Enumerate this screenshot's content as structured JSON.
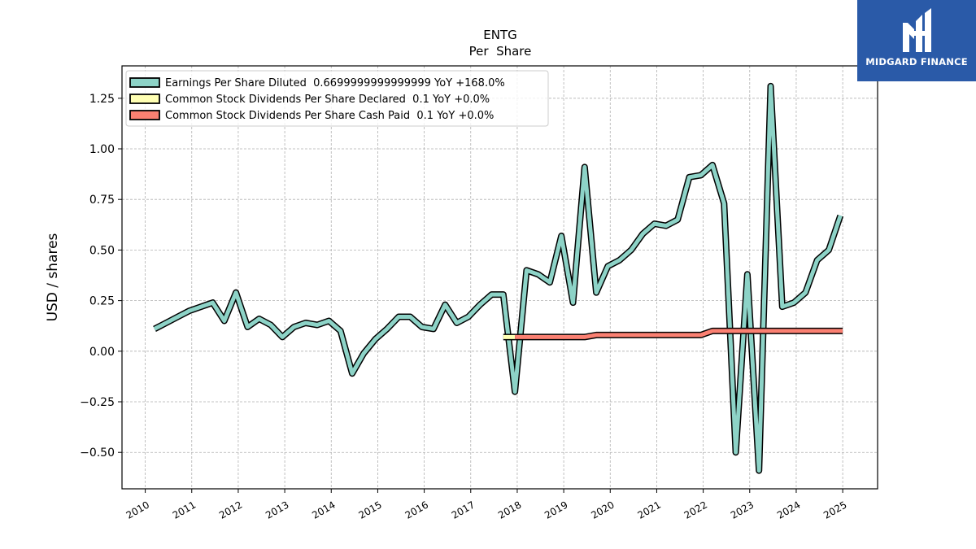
{
  "brand": {
    "name": "MIDGARD FINANCE",
    "colors": {
      "background": "#2a5aa8",
      "text": "#ffffff"
    }
  },
  "chart_data": {
    "type": "line",
    "title": "ENTG",
    "subtitle": "Per  Share",
    "ylabel": "USD / shares",
    "xlabel": "",
    "ylim": [
      -0.68,
      1.41
    ],
    "xlim": [
      2009.5,
      2025.75
    ],
    "yticks": [
      -0.5,
      -0.25,
      0.0,
      0.25,
      0.5,
      0.75,
      1.0,
      1.25
    ],
    "ytick_labels": [
      "−0.50",
      "−0.25",
      "0.00",
      "0.25",
      "0.50",
      "0.75",
      "1.00",
      "1.25"
    ],
    "xticks": [
      2010,
      2011,
      2012,
      2013,
      2014,
      2015,
      2016,
      2017,
      2018,
      2019,
      2020,
      2021,
      2022,
      2023,
      2024,
      2025
    ],
    "xtick_labels": [
      "2010",
      "2011",
      "2012",
      "2013",
      "2014",
      "2015",
      "2016",
      "2017",
      "2018",
      "2019",
      "2020",
      "2021",
      "2022",
      "2023",
      "2024",
      "2025"
    ],
    "grid": true,
    "legend_position": "top-left",
    "series": [
      {
        "name": "Earnings Per Share Diluted  0.6699999999999999 YoY +168.0%",
        "color": "#8dd3c7",
        "x": [
          2010.2,
          2010.45,
          2010.7,
          2010.95,
          2011.2,
          2011.45,
          2011.7,
          2011.95,
          2012.2,
          2012.45,
          2012.7,
          2012.95,
          2013.2,
          2013.45,
          2013.7,
          2013.95,
          2014.2,
          2014.45,
          2014.7,
          2014.95,
          2015.2,
          2015.45,
          2015.7,
          2015.95,
          2016.2,
          2016.45,
          2016.7,
          2016.95,
          2017.2,
          2017.45,
          2017.7,
          2017.95,
          2018.2,
          2018.45,
          2018.7,
          2018.95,
          2019.2,
          2019.45,
          2019.7,
          2019.95,
          2020.2,
          2020.45,
          2020.7,
          2020.95,
          2021.2,
          2021.45,
          2021.7,
          2021.95,
          2022.2,
          2022.45,
          2022.7,
          2022.95,
          2023.2,
          2023.45,
          2023.7,
          2023.95,
          2024.2,
          2024.45,
          2024.7,
          2024.95
        ],
        "values": [
          0.11,
          0.14,
          0.17,
          0.2,
          0.22,
          0.24,
          0.15,
          0.29,
          0.12,
          0.16,
          0.13,
          0.07,
          0.12,
          0.14,
          0.13,
          0.15,
          0.1,
          -0.11,
          -0.01,
          0.06,
          0.11,
          0.17,
          0.17,
          0.12,
          0.11,
          0.23,
          0.14,
          0.17,
          0.23,
          0.28,
          0.28,
          -0.2,
          0.4,
          0.38,
          0.34,
          0.57,
          0.24,
          0.91,
          0.29,
          0.42,
          0.45,
          0.5,
          0.58,
          0.63,
          0.62,
          0.65,
          0.86,
          0.87,
          0.92,
          0.73,
          -0.5,
          0.38,
          -0.59,
          1.31,
          0.22,
          0.24,
          0.29,
          0.45,
          0.5,
          0.67
        ]
      },
      {
        "name": "Common Stock Dividends Per Share Declared  0.1 YoY +0.0%",
        "color": "#ffffb3",
        "x": [
          2017.7,
          2017.95
        ],
        "values": [
          0.07,
          0.07
        ]
      },
      {
        "name": "Common Stock Dividends Per Share Cash Paid  0.1 YoY +0.0%",
        "color": "#fb8072",
        "x": [
          2017.95,
          2018.45,
          2018.95,
          2019.45,
          2019.7,
          2020.2,
          2020.7,
          2021.2,
          2021.7,
          2021.95,
          2022.2,
          2022.7,
          2023.2,
          2023.7,
          2024.2,
          2024.7,
          2025.0
        ],
        "values": [
          0.07,
          0.07,
          0.07,
          0.07,
          0.08,
          0.08,
          0.08,
          0.08,
          0.08,
          0.08,
          0.1,
          0.1,
          0.1,
          0.1,
          0.1,
          0.1,
          0.1
        ]
      }
    ]
  }
}
